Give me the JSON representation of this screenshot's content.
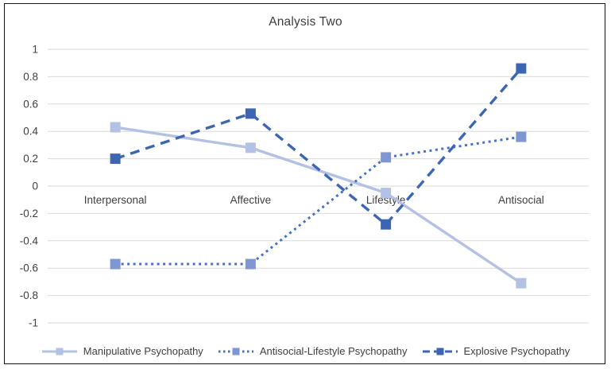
{
  "chart_data": {
    "type": "line",
    "title": "Analysis Two",
    "categories": [
      "Interpersonal",
      "Affective",
      "Lifestyle",
      "Antisocial"
    ],
    "series": [
      {
        "name": "Manipulative Psychopathy",
        "values": [
          0.43,
          0.28,
          -0.05,
          -0.71
        ],
        "style": "solid",
        "color": "#b3c1e4",
        "marker_color": "#b3c1e4"
      },
      {
        "name": "Antisocial-Lifestyle Psychopathy",
        "values": [
          -0.57,
          -0.57,
          0.21,
          0.36
        ],
        "style": "dotted",
        "color": "#4472c4",
        "marker_color": "#7e97d2"
      },
      {
        "name": "Explosive Psychopathy",
        "values": [
          0.2,
          0.53,
          -0.28,
          0.86
        ],
        "style": "dashed",
        "color": "#3c66b3",
        "marker_color": "#3c66b3"
      }
    ],
    "ylim": [
      -1,
      1
    ],
    "ytick_step": 0.2,
    "ytick_labels": [
      "1",
      "0.8",
      "0.6",
      "0.4",
      "0.2",
      "0",
      "-0.2",
      "-0.4",
      "-0.6",
      "-0.8",
      "-1"
    ],
    "grid": "horizontal",
    "legend_position": "bottom",
    "colors": {
      "gridline": "#d9d9d9",
      "text": "#3f3f3f",
      "border": "#141414"
    }
  }
}
